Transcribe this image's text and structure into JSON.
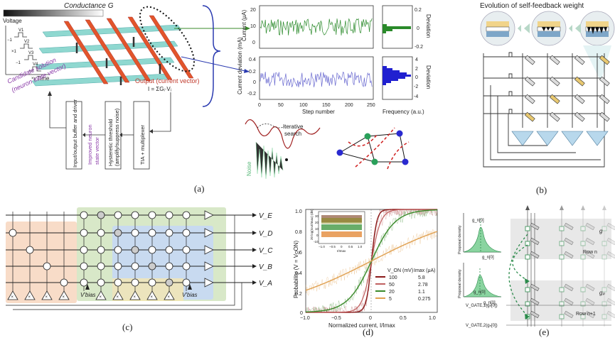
{
  "panel_a": {
    "label": "(a)",
    "conductance_label": "Conductance G",
    "voltage_label": "Voltage",
    "time_label": "Time",
    "voltage_ticks": [
      "V1",
      "V2",
      "V3",
      "V4"
    ],
    "multipliers": [
      "−1",
      "×1",
      "−1",
      "×y"
    ],
    "candidate_solution": "Candidate solution",
    "neuron_state_vector": "(neuron state vector)",
    "output_label": "Output (current vector)",
    "output_formula": "I = ΣGᵢ·Vᵢ",
    "box_io": "Input/output buffer and driver",
    "box_improved_1": "Improved neuron",
    "box_improved_2": "state vector",
    "box_threshold_1": "Hysteretic threshold",
    "box_threshold_2": "(amplify/suppress noise)",
    "box_tia": "TIA + multiplexer"
  },
  "plot_current": {
    "ylabel": "Current (μA)",
    "yticks": [
      "20",
      "10",
      "0"
    ],
    "right_label": "Deviation",
    "right_ticks": [
      "0.2",
      "0",
      "-0.2"
    ]
  },
  "plot_deviation": {
    "ylabel": "Current deviation (mA)",
    "yticks": [
      "0.4",
      "0.2",
      "0",
      "-0.2"
    ],
    "xticks": [
      "0",
      "50",
      "100",
      "150",
      "200",
      "250"
    ],
    "xlabel": "Step number",
    "right_label": "Deviation",
    "right_ticks": [
      "4",
      "2",
      "0",
      "-2",
      "-4"
    ],
    "right_xlabel": "Frequency (a.u.)"
  },
  "landscape": {
    "iterative": "Iterative",
    "search": "search",
    "noise": "Noise"
  },
  "panel_b": {
    "label": "(b)",
    "title": "Evolution of self-feedback weight"
  },
  "panel_c": {
    "label": "(c)",
    "rows": [
      "V_E",
      "V_D",
      "V_C",
      "V_B",
      "V_A"
    ],
    "vbias_left": "V'bias",
    "vbias_right": "V'bias",
    "amp_symbol": "×"
  },
  "panel_d": {
    "label": "(d)",
    "ylabel": "Probability (V = V_ON)",
    "xlabel": "Normalized current, I/Imax",
    "yticks": [
      "1.0",
      "0.8",
      "0.6",
      "0.4",
      "0.2",
      "0"
    ],
    "xticks": [
      "−1.0",
      "−0.5",
      "0",
      "0.5",
      "1.0"
    ],
    "legend_header_von": "V_ON (mV)",
    "legend_header_imax": "Imax (μA)",
    "legend": [
      {
        "von": "100",
        "imax": "5.8",
        "color": "#8b1a1a"
      },
      {
        "von": "50",
        "imax": "2.78",
        "color": "#c06060"
      },
      {
        "von": "20",
        "imax": "1.1",
        "color": "#3a8a2a"
      },
      {
        "von": "5",
        "imax": "0.275",
        "color": "#e0a050"
      }
    ],
    "inset_ylabel": "20 log(Iout/Imax) (dB)",
    "inset_yticks": [
      "30",
      "20",
      "10",
      "0",
      "-10"
    ],
    "inset_xticks": [
      "−1.0",
      "−0.5",
      "0",
      "0.5",
      "1.0"
    ],
    "inset_xlabel": "I/Imax"
  },
  "panel_e": {
    "label": "(e)",
    "g_top": "g_n[0]",
    "g_top_x": "g_n[0]",
    "g_bottom": "g_n[0]",
    "g_bottom_x": "g_n[0]",
    "proposal_density": "Proposal density",
    "row_n": "Row n",
    "row_n1": "Row n+1",
    "g": "g",
    "g_p": "gₚ",
    "vgate1": "V_GATE,1(gₙ[0])",
    "vgate2": "V_GATE,2(gₙ[0])"
  }
}
